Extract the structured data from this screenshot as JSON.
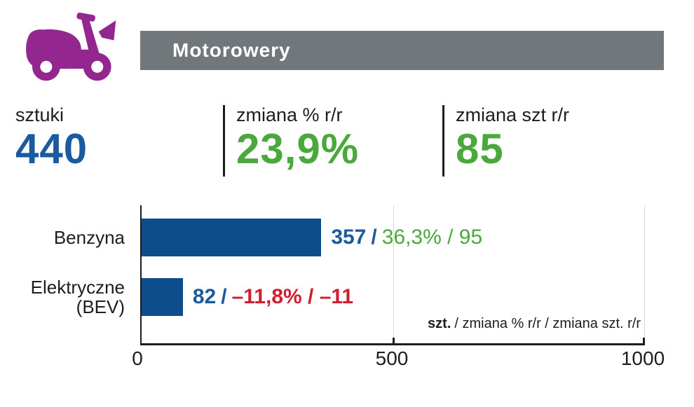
{
  "header": {
    "title": "Motorowery",
    "banner_color": "#72777b",
    "icon": "scooter-icon",
    "icon_color": "#93278f"
  },
  "stats": [
    {
      "label": "sztuki",
      "value": "440",
      "value_color": "#1b5a9e"
    },
    {
      "label": "zmiana % r/r",
      "value": "23,9%",
      "value_color": "#4aa83c"
    },
    {
      "label": "zmiana szt r/r",
      "value": "85",
      "value_color": "#4aa83c"
    }
  ],
  "chart_data": {
    "type": "bar",
    "orientation": "horizontal",
    "title": "Motorowery",
    "categories": [
      "Benzyna",
      "Elektryczne (BEV)"
    ],
    "values": [
      357,
      82
    ],
    "xlim": [
      0,
      1000
    ],
    "x_ticks": [
      "0",
      "500",
      "1000"
    ],
    "grid": "vertical gridlines at 500 and 1000",
    "legend_position": "none",
    "bar_color": "#0e4d8c",
    "value_color": "#1b5a9e",
    "positive_color": "#4aa83c",
    "negative_color": "#cf1f2e",
    "rows": [
      {
        "units": "357",
        "sep": "/",
        "change": "36,3% / 95",
        "trend": "up"
      },
      {
        "units": "82",
        "sep": "/",
        "change": "–11,8% / –11",
        "trend": "down"
      }
    ],
    "note_bold": "szt.",
    "note_rest": "/ zmiana % r/r / zmiana szt. r/r"
  }
}
